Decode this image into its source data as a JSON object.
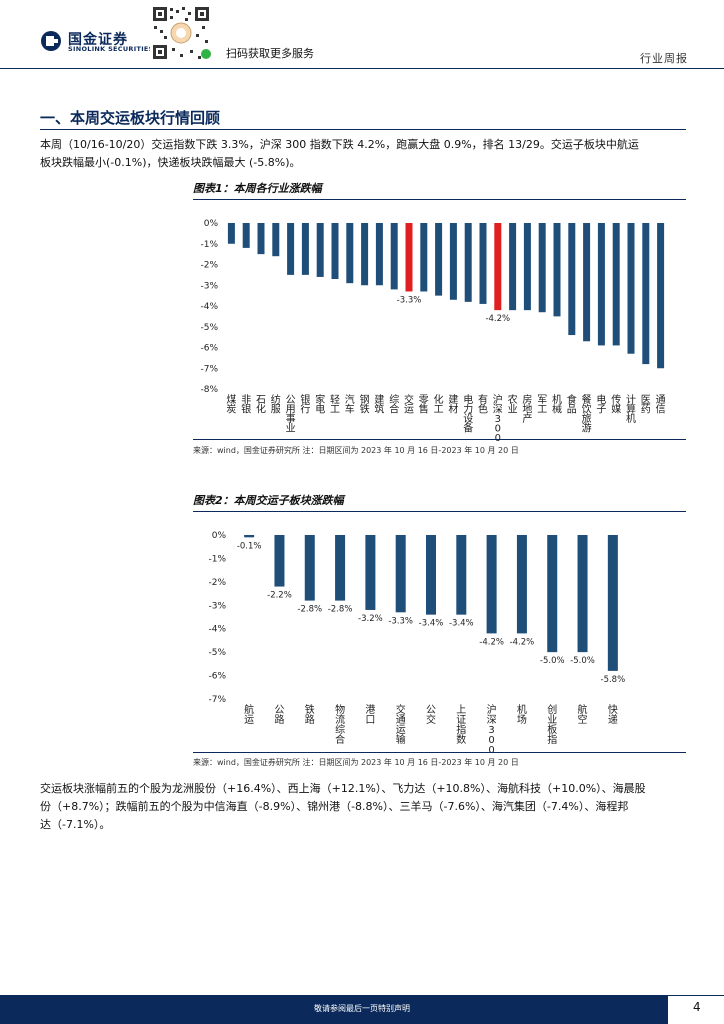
{
  "header": {
    "brand_cn": "国金证券",
    "brand_en": "SINOLINK SECURITIES",
    "scan_text": "扫码获取更多服务",
    "report_type": "行业周报",
    "brand_color": "#0b2a5b"
  },
  "section": {
    "title": "一、本周交运板块行情回顾",
    "para1_line1": "本周（10/16-10/20）交运指数下跌 3.3%，沪深 300 指数下跌 4.2%，跑赢大盘 0.9%，排名 13/29。交运子板块中航运",
    "para1_line2": "板块跌幅最小(-0.1%)，快递板块跌幅最大 (-5.8%)。",
    "para2_line1": "交运板块涨幅前五的个股为龙洲股份（+16.4%）、西上海（+12.1%）、飞力达（+10.8%）、海航科技（+10.0%）、海晨股",
    "para2_line2": "份（+8.7%）；跌幅前五的个股为中信海直（-8.9%）、锦州港（-8.8%）、三羊马（-7.6%）、海汽集团（-7.4%）、海程邦",
    "para2_line3": "达（-7.1%）。"
  },
  "figure1": {
    "title": "图表1：本周各行业涨跌幅",
    "source": "来源：wind，国金证券研究所   注：日期区间为 2023 年 10 月 16 日-2023 年 10 月 20 日"
  },
  "figure2": {
    "title": "图表2：本周交运子板块涨跌幅",
    "source": "来源：wind，国金证券研究所   注：日期区间为 2023 年 10 月 16 日-2023 年 10 月 20 日"
  },
  "chart_data": [
    {
      "type": "bar",
      "title": "图表1：本周各行业涨跌幅",
      "categories": [
        "煤炭",
        "非银",
        "石化",
        "纺服",
        "公用事业",
        "银行",
        "家电",
        "轻工",
        "汽车",
        "钢铁",
        "建筑",
        "综合",
        "交运",
        "零售",
        "化工",
        "建材",
        "电力设备",
        "有色",
        "沪深300",
        "农业",
        "房地产",
        "军工",
        "机械",
        "食品",
        "餐饮旅游",
        "电子",
        "传媒",
        "计算机",
        "医药",
        "通信"
      ],
      "values": [
        -1.0,
        -1.2,
        -1.5,
        -1.6,
        -2.5,
        -2.5,
        -2.6,
        -2.7,
        -2.9,
        -3.0,
        -3.0,
        -3.2,
        -3.3,
        -3.3,
        -3.5,
        -3.7,
        -3.8,
        -3.9,
        -4.2,
        -4.2,
        -4.2,
        -4.3,
        -4.5,
        -5.4,
        -5.7,
        -5.9,
        -5.9,
        -6.3,
        -6.8,
        -7.0
      ],
      "highlight": [
        "交运",
        "沪深300"
      ],
      "labeled": {
        "交运": "-3.3%",
        "沪深300": "-4.2%"
      },
      "ylim": [
        -8,
        0
      ],
      "yticks": [
        "0%",
        "-1%",
        "-2%",
        "-3%",
        "-4%",
        "-5%",
        "-6%",
        "-7%",
        "-8%"
      ],
      "bar_color": "#1f4e79",
      "highlight_color": "#e02020"
    },
    {
      "type": "bar",
      "title": "图表2：本周交运子板块涨跌幅",
      "categories": [
        "航运",
        "公路",
        "铁路",
        "物流综合",
        "港口",
        "交通运输",
        "公交",
        "上证指数",
        "沪深300",
        "机场",
        "创业板指",
        "航空",
        "快递"
      ],
      "values": [
        -0.1,
        -2.2,
        -2.8,
        -2.8,
        -3.2,
        -3.3,
        -3.4,
        -3.4,
        -4.2,
        -4.2,
        -5.0,
        -5.0,
        -5.8
      ],
      "data_labels": [
        "-0.1%",
        "-2.2%",
        "-2.8%",
        "-2.8%",
        "-3.2%",
        "-3.3%",
        "-3.4%",
        "-3.4%",
        "-4.2%",
        "-4.2%",
        "-5.0%",
        "-5.0%",
        "-5.8%"
      ],
      "ylim": [
        -7,
        0
      ],
      "yticks": [
        "0%",
        "-1%",
        "-2%",
        "-3%",
        "-4%",
        "-5%",
        "-6%",
        "-7%"
      ],
      "bar_color": "#1f4e79"
    }
  ],
  "footer": {
    "note": "敬请参阅最后一页特别声明",
    "page": "4"
  }
}
